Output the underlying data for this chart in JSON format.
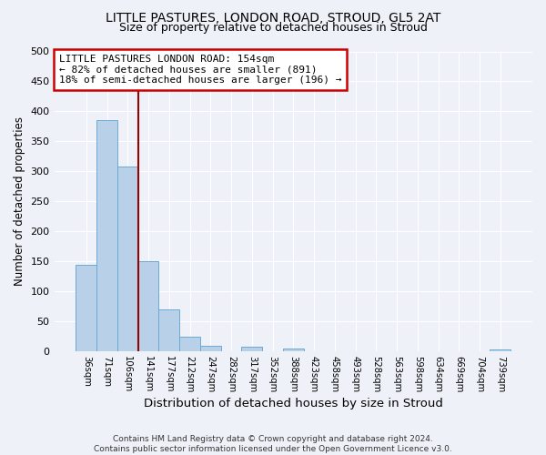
{
  "title": "LITTLE PASTURES, LONDON ROAD, STROUD, GL5 2AT",
  "subtitle": "Size of property relative to detached houses in Stroud",
  "xlabel": "Distribution of detached houses by size in Stroud",
  "ylabel": "Number of detached properties",
  "footer_line1": "Contains HM Land Registry data © Crown copyright and database right 2024.",
  "footer_line2": "Contains public sector information licensed under the Open Government Licence v3.0.",
  "bar_labels": [
    "36sqm",
    "71sqm",
    "106sqm",
    "141sqm",
    "177sqm",
    "212sqm",
    "247sqm",
    "282sqm",
    "317sqm",
    "352sqm",
    "388sqm",
    "423sqm",
    "458sqm",
    "493sqm",
    "528sqm",
    "563sqm",
    "598sqm",
    "634sqm",
    "669sqm",
    "704sqm",
    "739sqm"
  ],
  "bar_values": [
    144,
    385,
    308,
    150,
    70,
    25,
    10,
    0,
    8,
    0,
    5,
    0,
    0,
    0,
    0,
    0,
    0,
    0,
    0,
    0,
    3
  ],
  "bar_color": "#b8d0e8",
  "bar_edge_color": "#6aaad4",
  "ylim": [
    0,
    500
  ],
  "yticks": [
    0,
    50,
    100,
    150,
    200,
    250,
    300,
    350,
    400,
    450,
    500
  ],
  "property_line_color": "#990000",
  "annotation_title": "LITTLE PASTURES LONDON ROAD: 154sqm",
  "annotation_line1": "← 82% of detached houses are smaller (891)",
  "annotation_line2": "18% of semi-detached houses are larger (196) →",
  "annotation_box_color": "#ffffff",
  "annotation_box_edge": "#cc0000",
  "background_color": "#eef2f8",
  "grid_color": "#ffffff"
}
